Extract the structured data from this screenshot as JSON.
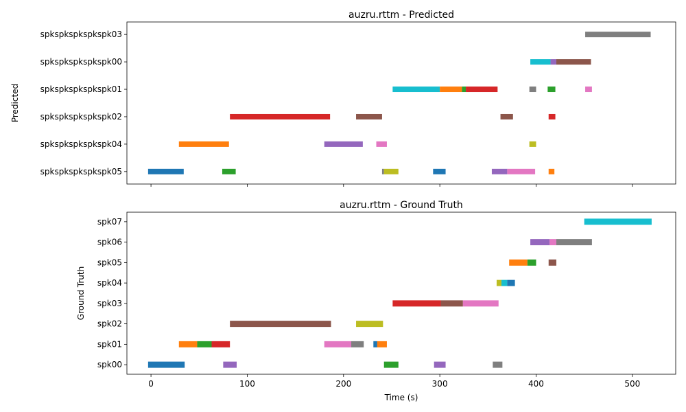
{
  "chart_data": [
    {
      "type": "timeline",
      "title": "auzru.rttm - Predicted",
      "xlabel": "",
      "ylabel": "Predicted",
      "xlim": [
        -25,
        545
      ],
      "xticks": [
        0,
        100,
        200,
        300,
        400,
        500
      ],
      "show_xtick_labels": false,
      "grid": false,
      "rows": [
        "spkspkspkspkspk05",
        "spkspkspkspkspk04",
        "spkspkspkspkspk02",
        "spkspkspkspkspk01",
        "spkspkspkspkspk00",
        "spkspkspkspkspk03"
      ],
      "segments": [
        {
          "row": 0,
          "start": -3,
          "end": 34,
          "color": "#1f77b4"
        },
        {
          "row": 0,
          "start": 74,
          "end": 88,
          "color": "#2ca02c"
        },
        {
          "row": 0,
          "start": 240,
          "end": 242,
          "color": "#7f7f7f"
        },
        {
          "row": 0,
          "start": 242,
          "end": 257,
          "color": "#bcbd22"
        },
        {
          "row": 0,
          "start": 293,
          "end": 306,
          "color": "#1f77b4"
        },
        {
          "row": 0,
          "start": 354,
          "end": 370,
          "color": "#9467bd"
        },
        {
          "row": 0,
          "start": 370,
          "end": 399,
          "color": "#e377c2"
        },
        {
          "row": 0,
          "start": 413,
          "end": 419,
          "color": "#ff7f0e"
        },
        {
          "row": 1,
          "start": 29,
          "end": 81,
          "color": "#ff7f0e"
        },
        {
          "row": 1,
          "start": 180,
          "end": 220,
          "color": "#9467bd"
        },
        {
          "row": 1,
          "start": 234,
          "end": 245,
          "color": "#e377c2"
        },
        {
          "row": 1,
          "start": 393,
          "end": 400,
          "color": "#bcbd22"
        },
        {
          "row": 2,
          "start": 82,
          "end": 186,
          "color": "#d62728"
        },
        {
          "row": 2,
          "start": 213,
          "end": 240,
          "color": "#8c564b"
        },
        {
          "row": 2,
          "start": 363,
          "end": 376,
          "color": "#8c564b"
        },
        {
          "row": 2,
          "start": 413,
          "end": 420,
          "color": "#d62728"
        },
        {
          "row": 3,
          "start": 251,
          "end": 300,
          "color": "#17becf"
        },
        {
          "row": 3,
          "start": 300,
          "end": 323,
          "color": "#ff7f0e"
        },
        {
          "row": 3,
          "start": 323,
          "end": 327,
          "color": "#2ca02c"
        },
        {
          "row": 3,
          "start": 327,
          "end": 360,
          "color": "#d62728"
        },
        {
          "row": 3,
          "start": 393,
          "end": 400,
          "color": "#7f7f7f"
        },
        {
          "row": 3,
          "start": 412,
          "end": 420,
          "color": "#2ca02c"
        },
        {
          "row": 3,
          "start": 451,
          "end": 458,
          "color": "#e377c2"
        },
        {
          "row": 4,
          "start": 394,
          "end": 415,
          "color": "#17becf"
        },
        {
          "row": 4,
          "start": 415,
          "end": 421,
          "color": "#9467bd"
        },
        {
          "row": 4,
          "start": 421,
          "end": 457,
          "color": "#8c564b"
        },
        {
          "row": 5,
          "start": 451,
          "end": 519,
          "color": "#7f7f7f"
        }
      ]
    },
    {
      "type": "timeline",
      "title": "auzru.rttm - Ground Truth",
      "xlabel": "Time (s)",
      "ylabel": "Ground Truth",
      "xlim": [
        -25,
        545
      ],
      "xticks": [
        0,
        100,
        200,
        300,
        400,
        500
      ],
      "show_xtick_labels": true,
      "grid": false,
      "rows": [
        "spk00",
        "spk01",
        "spk02",
        "spk03",
        "spk04",
        "spk05",
        "spk06",
        "spk07"
      ],
      "segments": [
        {
          "row": 0,
          "start": -3,
          "end": 35,
          "color": "#1f77b4"
        },
        {
          "row": 0,
          "start": 75,
          "end": 89,
          "color": "#9467bd"
        },
        {
          "row": 0,
          "start": 242,
          "end": 257,
          "color": "#2ca02c"
        },
        {
          "row": 0,
          "start": 294,
          "end": 306,
          "color": "#9467bd"
        },
        {
          "row": 0,
          "start": 355,
          "end": 365,
          "color": "#7f7f7f"
        },
        {
          "row": 1,
          "start": 29,
          "end": 48,
          "color": "#ff7f0e"
        },
        {
          "row": 1,
          "start": 48,
          "end": 63,
          "color": "#2ca02c"
        },
        {
          "row": 1,
          "start": 63,
          "end": 82,
          "color": "#d62728"
        },
        {
          "row": 1,
          "start": 180,
          "end": 208,
          "color": "#e377c2"
        },
        {
          "row": 1,
          "start": 208,
          "end": 221,
          "color": "#7f7f7f"
        },
        {
          "row": 1,
          "start": 231,
          "end": 235,
          "color": "#1f77b4"
        },
        {
          "row": 1,
          "start": 235,
          "end": 245,
          "color": "#ff7f0e"
        },
        {
          "row": 2,
          "start": 82,
          "end": 187,
          "color": "#8c564b"
        },
        {
          "row": 2,
          "start": 213,
          "end": 241,
          "color": "#bcbd22"
        },
        {
          "row": 3,
          "start": 251,
          "end": 301,
          "color": "#d62728"
        },
        {
          "row": 3,
          "start": 301,
          "end": 324,
          "color": "#8c564b"
        },
        {
          "row": 3,
          "start": 324,
          "end": 361,
          "color": "#e377c2"
        },
        {
          "row": 4,
          "start": 359,
          "end": 364,
          "color": "#bcbd22"
        },
        {
          "row": 4,
          "start": 364,
          "end": 370,
          "color": "#17becf"
        },
        {
          "row": 4,
          "start": 370,
          "end": 378,
          "color": "#1f77b4"
        },
        {
          "row": 5,
          "start": 372,
          "end": 391,
          "color": "#ff7f0e"
        },
        {
          "row": 5,
          "start": 391,
          "end": 400,
          "color": "#2ca02c"
        },
        {
          "row": 5,
          "start": 413,
          "end": 421,
          "color": "#8c564b"
        },
        {
          "row": 6,
          "start": 394,
          "end": 414,
          "color": "#9467bd"
        },
        {
          "row": 6,
          "start": 414,
          "end": 421,
          "color": "#e377c2"
        },
        {
          "row": 6,
          "start": 421,
          "end": 458,
          "color": "#7f7f7f"
        },
        {
          "row": 7,
          "start": 450,
          "end": 520,
          "color": "#17becf"
        }
      ]
    }
  ]
}
